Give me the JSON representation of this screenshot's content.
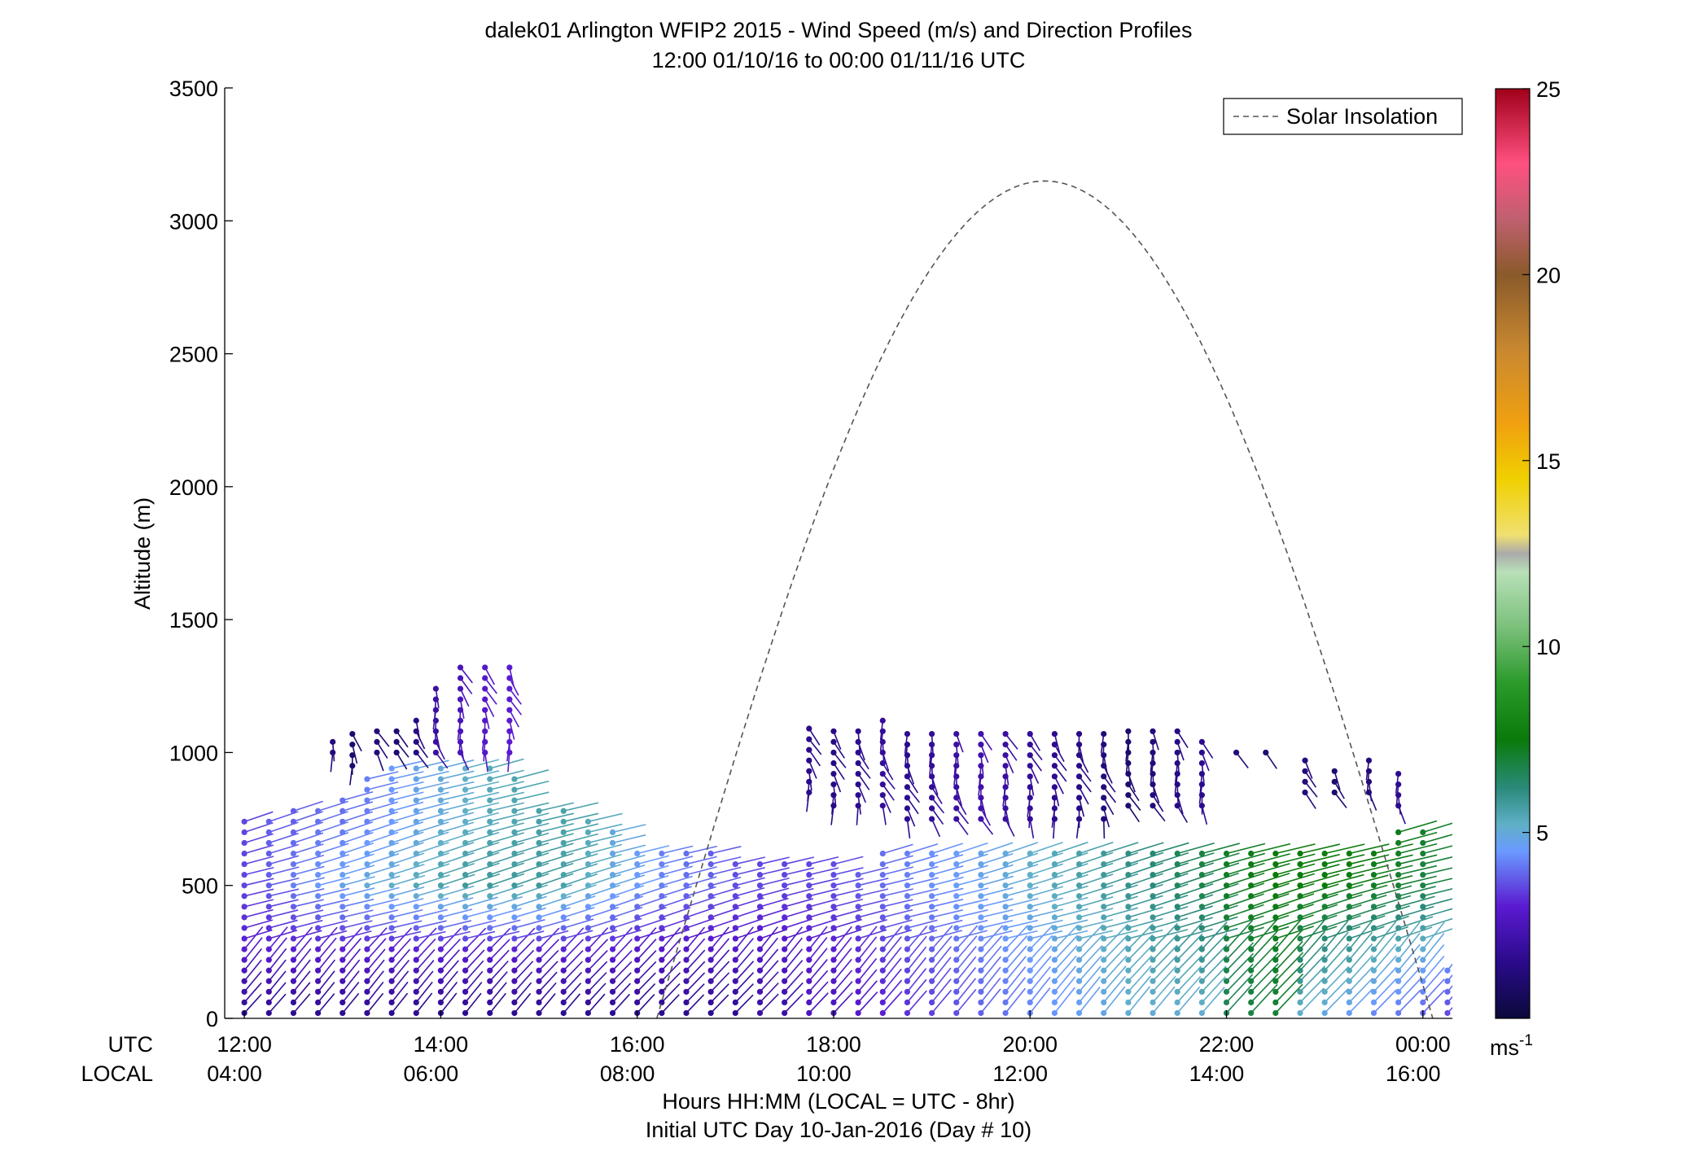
{
  "chart_data": {
    "type": "wind-barb-profile",
    "title": "dalek01 Arlington WFIP2 2015 - Wind Speed (m/s) and Direction Profiles",
    "subtitle": "12:00 01/10/16 to 00:00 01/11/16  UTC",
    "ylabel": "Altitude (m)",
    "xlabel": "Hours HH:MM  (LOCAL = UTC - 8hr)",
    "xlabel2": "Initial UTC Day 10-Jan-2016 (Day # 10)",
    "ylim": [
      0,
      3500
    ],
    "yticks": [
      0,
      500,
      1000,
      1500,
      2000,
      2500,
      3000,
      3500
    ],
    "xlim_utc_hours": [
      11.8,
      24.3
    ],
    "utc_row_label": "UTC",
    "local_row_label": "LOCAL",
    "utc_ticks": [
      {
        "hour": 12,
        "label": "12:00"
      },
      {
        "hour": 14,
        "label": "14:00"
      },
      {
        "hour": 16,
        "label": "16:00"
      },
      {
        "hour": 18,
        "label": "18:00"
      },
      {
        "hour": 20,
        "label": "20:00"
      },
      {
        "hour": 22,
        "label": "22:00"
      },
      {
        "hour": 24,
        "label": "00:00"
      }
    ],
    "local_ticks": [
      {
        "hour": 11.9,
        "label": "04:00"
      },
      {
        "hour": 13.9,
        "label": "06:00"
      },
      {
        "hour": 15.9,
        "label": "08:00"
      },
      {
        "hour": 17.9,
        "label": "10:00"
      },
      {
        "hour": 19.9,
        "label": "12:00"
      },
      {
        "hour": 21.9,
        "label": "14:00"
      },
      {
        "hour": 23.9,
        "label": "16:00"
      }
    ],
    "legend": {
      "label": "Solar Insolation",
      "placement": "top-right",
      "style": "dashed-gray"
    },
    "solar_insolation": {
      "rise_utc_hour": 16.2,
      "set_utc_hour": 24.1,
      "peak_utc_hour": 20.0,
      "peak_altitude_m": 3150
    },
    "colorbar": {
      "range": [
        0,
        25
      ],
      "ticks": [
        5,
        10,
        15,
        20,
        25
      ],
      "unit_label": "ms",
      "unit_exponent": "-1",
      "stops": [
        {
          "v": 0,
          "color": "#0a0a3a"
        },
        {
          "v": 1.5,
          "color": "#2a0a8a"
        },
        {
          "v": 3,
          "color": "#5a1ad0"
        },
        {
          "v": 4.5,
          "color": "#6a9aff"
        },
        {
          "v": 5.2,
          "color": "#60b0c8"
        },
        {
          "v": 6.2,
          "color": "#2a8a7a"
        },
        {
          "v": 7.5,
          "color": "#0a7a0a"
        },
        {
          "v": 9,
          "color": "#2a9a2a"
        },
        {
          "v": 10.5,
          "color": "#7ac07a"
        },
        {
          "v": 12,
          "color": "#b8e0b8"
        },
        {
          "v": 12.5,
          "color": "#aaaaaa"
        },
        {
          "v": 13,
          "color": "#f0e070"
        },
        {
          "v": 14.5,
          "color": "#f0d000"
        },
        {
          "v": 16,
          "color": "#f0a010"
        },
        {
          "v": 18,
          "color": "#c88830"
        },
        {
          "v": 20,
          "color": "#8a5a2a"
        },
        {
          "v": 21.5,
          "color": "#c06070"
        },
        {
          "v": 23,
          "color": "#ff5080"
        },
        {
          "v": 25,
          "color": "#a0001a"
        }
      ]
    },
    "profiles_low": [
      {
        "t": 12.0,
        "top": 750,
        "spd": [
          1.5,
          3.0,
          3.5,
          3.5
        ]
      },
      {
        "t": 12.25,
        "top": 750,
        "spd": [
          1.5,
          3.0,
          3.8,
          3.8
        ]
      },
      {
        "t": 12.5,
        "top": 800,
        "spd": [
          1.5,
          3.0,
          4.2,
          3.8
        ]
      },
      {
        "t": 12.75,
        "top": 800,
        "spd": [
          1.5,
          3.0,
          4.5,
          4.0
        ]
      },
      {
        "t": 13.0,
        "top": 850,
        "spd": [
          1.5,
          3.0,
          4.8,
          4.0
        ]
      },
      {
        "t": 13.25,
        "top": 900,
        "spd": [
          1.5,
          3.0,
          5.0,
          4.2
        ]
      },
      {
        "t": 13.5,
        "top": 950,
        "spd": [
          1.5,
          3.0,
          5.2,
          4.5
        ]
      },
      {
        "t": 13.75,
        "top": 950,
        "spd": [
          1.5,
          3.0,
          5.4,
          4.8
        ]
      },
      {
        "t": 14.0,
        "top": 950,
        "spd": [
          1.5,
          3.0,
          5.6,
          5.0
        ]
      },
      {
        "t": 14.25,
        "top": 950,
        "spd": [
          1.5,
          3.0,
          5.8,
          5.2
        ]
      },
      {
        "t": 14.5,
        "top": 950,
        "spd": [
          1.5,
          3.0,
          5.8,
          5.4
        ]
      },
      {
        "t": 14.75,
        "top": 900,
        "spd": [
          1.5,
          3.0,
          5.8,
          5.5
        ]
      },
      {
        "t": 15.0,
        "top": 800,
        "spd": [
          1.5,
          3.0,
          5.8,
          5.6
        ]
      },
      {
        "t": 15.25,
        "top": 800,
        "spd": [
          1.5,
          3.0,
          5.6,
          5.6
        ]
      },
      {
        "t": 15.5,
        "top": 750,
        "spd": [
          1.5,
          3.0,
          5.2,
          5.4
        ]
      },
      {
        "t": 15.75,
        "top": 700,
        "spd": [
          1.5,
          3.0,
          4.8,
          5.0
        ]
      },
      {
        "t": 16.0,
        "top": 650,
        "spd": [
          1.5,
          2.8,
          4.5,
          4.6
        ]
      },
      {
        "t": 16.25,
        "top": 650,
        "spd": [
          1.5,
          2.8,
          4.2,
          4.2
        ]
      },
      {
        "t": 16.5,
        "top": 650,
        "spd": [
          1.5,
          2.8,
          4.0,
          4.0
        ]
      },
      {
        "t": 16.75,
        "top": 650,
        "spd": [
          1.5,
          2.8,
          3.8,
          3.8
        ]
      },
      {
        "t": 17.0,
        "top": 600,
        "spd": [
          1.5,
          2.8,
          3.6,
          3.6
        ]
      },
      {
        "t": 17.25,
        "top": 600,
        "spd": [
          2.0,
          2.8,
          3.5,
          3.5
        ]
      },
      {
        "t": 17.5,
        "top": 600,
        "spd": [
          2.0,
          2.8,
          3.5,
          3.5
        ]
      },
      {
        "t": 17.75,
        "top": 600,
        "spd": [
          2.5,
          3.0,
          3.5,
          3.5
        ]
      },
      {
        "t": 18.0,
        "top": 600,
        "spd": [
          2.5,
          3.0,
          3.6,
          3.6
        ]
      },
      {
        "t": 18.25,
        "top": 550,
        "spd": [
          2.8,
          3.2,
          3.8,
          3.8
        ]
      },
      {
        "t": 18.5,
        "top": 650,
        "spd": [
          3.0,
          3.4,
          4.0,
          4.0
        ]
      },
      {
        "t": 18.75,
        "top": 650,
        "spd": [
          3.2,
          3.6,
          4.2,
          4.2
        ]
      },
      {
        "t": 19.0,
        "top": 650,
        "spd": [
          3.4,
          3.8,
          4.4,
          4.4
        ]
      },
      {
        "t": 19.25,
        "top": 650,
        "spd": [
          3.6,
          4.0,
          4.6,
          4.6
        ]
      },
      {
        "t": 19.5,
        "top": 650,
        "spd": [
          3.8,
          4.2,
          4.8,
          4.8
        ]
      },
      {
        "t": 19.75,
        "top": 650,
        "spd": [
          4.0,
          4.4,
          5.0,
          5.0
        ]
      },
      {
        "t": 20.0,
        "top": 650,
        "spd": [
          4.2,
          4.6,
          5.2,
          5.2
        ]
      },
      {
        "t": 20.25,
        "top": 650,
        "spd": [
          4.4,
          4.8,
          5.4,
          5.4
        ]
      },
      {
        "t": 20.5,
        "top": 650,
        "spd": [
          4.6,
          5.0,
          5.6,
          5.6
        ]
      },
      {
        "t": 20.75,
        "top": 650,
        "spd": [
          4.8,
          5.2,
          5.8,
          5.8
        ]
      },
      {
        "t": 21.0,
        "top": 650,
        "spd": [
          5.0,
          5.4,
          6.0,
          6.2
        ]
      },
      {
        "t": 21.25,
        "top": 650,
        "spd": [
          5.0,
          5.6,
          6.2,
          6.5
        ]
      },
      {
        "t": 21.5,
        "top": 650,
        "spd": [
          5.0,
          5.8,
          6.5,
          6.8
        ]
      },
      {
        "t": 21.75,
        "top": 650,
        "spd": [
          5.0,
          6.0,
          6.8,
          7.0
        ]
      },
      {
        "t": 22.0,
        "top": 650,
        "spd": [
          6.5,
          6.8,
          7.2,
          7.2
        ]
      },
      {
        "t": 22.25,
        "top": 650,
        "spd": [
          6.8,
          7.0,
          7.4,
          7.4
        ]
      },
      {
        "t": 22.5,
        "top": 650,
        "spd": [
          7.0,
          7.2,
          7.5,
          7.5
        ]
      },
      {
        "t": 22.75,
        "top": 650,
        "spd": [
          5.0,
          6.5,
          7.5,
          7.6
        ]
      },
      {
        "t": 23.0,
        "top": 650,
        "spd": [
          4.8,
          6.0,
          7.5,
          7.8
        ]
      },
      {
        "t": 23.25,
        "top": 650,
        "spd": [
          4.5,
          5.8,
          7.4,
          7.8
        ]
      },
      {
        "t": 23.5,
        "top": 650,
        "spd": [
          4.2,
          5.5,
          7.2,
          7.6
        ]
      },
      {
        "t": 23.75,
        "top": 700,
        "spd": [
          4.0,
          5.2,
          7.0,
          7.4
        ]
      },
      {
        "t": 24.0,
        "top": 700,
        "spd": [
          3.8,
          5.0,
          6.8,
          7.2
        ]
      },
      {
        "t": 24.25,
        "top": 200,
        "spd": [
          3.5,
          4.5,
          6.5,
          7.0
        ]
      }
    ],
    "profiles_upper": [
      {
        "t": 12.9,
        "bottom": 1000,
        "top": 1050,
        "spd": 1.2
      },
      {
        "t": 13.1,
        "bottom": 950,
        "top": 1100,
        "spd": 1.0
      },
      {
        "t": 13.35,
        "bottom": 1000,
        "top": 1100,
        "spd": 1.2
      },
      {
        "t": 13.55,
        "bottom": 1000,
        "top": 1100,
        "spd": 1.0
      },
      {
        "t": 13.75,
        "bottom": 1000,
        "top": 1150,
        "spd": 1.4
      },
      {
        "t": 13.95,
        "bottom": 1000,
        "top": 1250,
        "spd": 2.0
      },
      {
        "t": 14.2,
        "bottom": 1000,
        "top": 1330,
        "spd": 2.5
      },
      {
        "t": 14.45,
        "bottom": 1000,
        "top": 1330,
        "spd": 2.8
      },
      {
        "t": 14.7,
        "bottom": 1000,
        "top": 1330,
        "spd": 3.0
      },
      {
        "t": 17.75,
        "bottom": 850,
        "top": 1100,
        "spd": 1.5
      },
      {
        "t": 18.0,
        "bottom": 800,
        "top": 1100,
        "spd": 1.4
      },
      {
        "t": 18.25,
        "bottom": 800,
        "top": 1100,
        "spd": 1.6
      },
      {
        "t": 18.5,
        "bottom": 800,
        "top": 1130,
        "spd": 1.8
      },
      {
        "t": 18.75,
        "bottom": 750,
        "top": 1100,
        "spd": 1.6
      },
      {
        "t": 19.0,
        "bottom": 750,
        "top": 1100,
        "spd": 1.8
      },
      {
        "t": 19.25,
        "bottom": 750,
        "top": 1100,
        "spd": 2.0
      },
      {
        "t": 19.5,
        "bottom": 750,
        "top": 1100,
        "spd": 2.2
      },
      {
        "t": 19.75,
        "bottom": 750,
        "top": 1100,
        "spd": 2.0
      },
      {
        "t": 20.0,
        "bottom": 750,
        "top": 1100,
        "spd": 1.8
      },
      {
        "t": 20.25,
        "bottom": 750,
        "top": 1100,
        "spd": 1.6
      },
      {
        "t": 20.5,
        "bottom": 750,
        "top": 1100,
        "spd": 1.4
      },
      {
        "t": 20.75,
        "bottom": 750,
        "top": 1100,
        "spd": 1.2
      },
      {
        "t": 21.0,
        "bottom": 800,
        "top": 1100,
        "spd": 1.0
      },
      {
        "t": 21.25,
        "bottom": 800,
        "top": 1100,
        "spd": 1.2
      },
      {
        "t": 21.5,
        "bottom": 800,
        "top": 1100,
        "spd": 1.4
      },
      {
        "t": 21.75,
        "bottom": 800,
        "top": 1050,
        "spd": 1.6
      },
      {
        "t": 22.1,
        "bottom": 1000,
        "top": 1000,
        "spd": 1.2
      },
      {
        "t": 22.4,
        "bottom": 1000,
        "top": 1000,
        "spd": 1.0
      },
      {
        "t": 22.8,
        "bottom": 850,
        "top": 1000,
        "spd": 1.2
      },
      {
        "t": 23.1,
        "bottom": 850,
        "top": 950,
        "spd": 1.0
      },
      {
        "t": 23.45,
        "bottom": 850,
        "top": 1000,
        "spd": 1.2
      },
      {
        "t": 23.75,
        "bottom": 800,
        "top": 950,
        "spd": 1.6
      }
    ]
  }
}
